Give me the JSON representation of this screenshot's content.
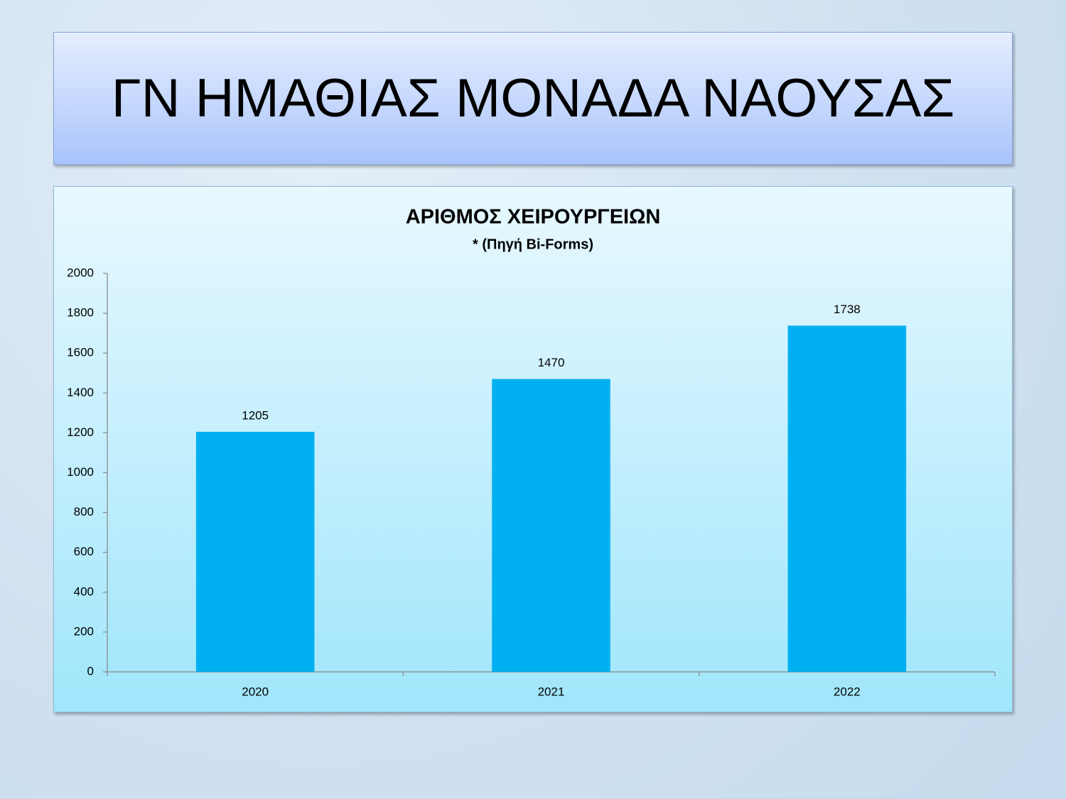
{
  "slide": {
    "title": "ΓΝ ΗΜΑΘΙΑΣ ΜΟΝΑΔΑ ΝΑΟΥΣΑΣ"
  },
  "chart_data": {
    "type": "bar",
    "title": "ΑΡΙΘΜΟΣ ΧΕΙΡΟΥΡΓΕΙΩΝ",
    "subtitle": "* (Πηγή Bi-Forms)",
    "categories": [
      "2020",
      "2021",
      "2022"
    ],
    "values": [
      1205,
      1470,
      1738
    ],
    "color": "#00b0f0",
    "ylim": [
      0,
      2000
    ],
    "yticks": [
      0,
      200,
      400,
      600,
      800,
      1000,
      1200,
      1400,
      1600,
      1800,
      2000
    ],
    "grid": false
  }
}
